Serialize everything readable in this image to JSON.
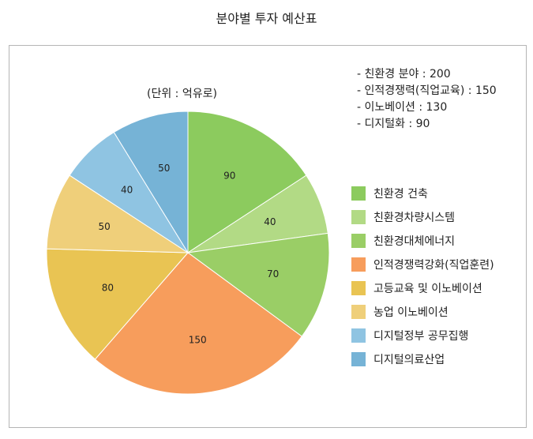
{
  "title": "분야별 투자 예산표",
  "unit_label": "(단위 : 억유로)",
  "summary": [
    "- 친환경 분야 : 200",
    "- 인적경쟁력(직업교육) : 150",
    "- 이노베이션 : 130",
    "- 디지털화 : 90"
  ],
  "chart_data": {
    "type": "pie",
    "title": "분야별 투자 예산표",
    "legend_position": "right",
    "start": "12 o'clock, clockwise",
    "slices": [
      {
        "label": "친환경 건축",
        "value": 90,
        "color": "#8ccb5e"
      },
      {
        "label": "친환경차량시스템",
        "value": 40,
        "color": "#b2da85"
      },
      {
        "label": "친환경대체에너지",
        "value": 70,
        "color": "#9ace66"
      },
      {
        "label": "인적경쟁력강화(직업훈련)",
        "value": 150,
        "color": "#f79d5c"
      },
      {
        "label": "고등교육 및 이노베이션",
        "value": 80,
        "color": "#e9c453"
      },
      {
        "label": "농업 이노베이션",
        "value": 50,
        "color": "#efcf7a"
      },
      {
        "label": "디지털정부 공무집행",
        "value": 40,
        "color": "#8fc4e2"
      },
      {
        "label": "디지털의료산업",
        "value": 50,
        "color": "#76b3d6"
      }
    ]
  }
}
